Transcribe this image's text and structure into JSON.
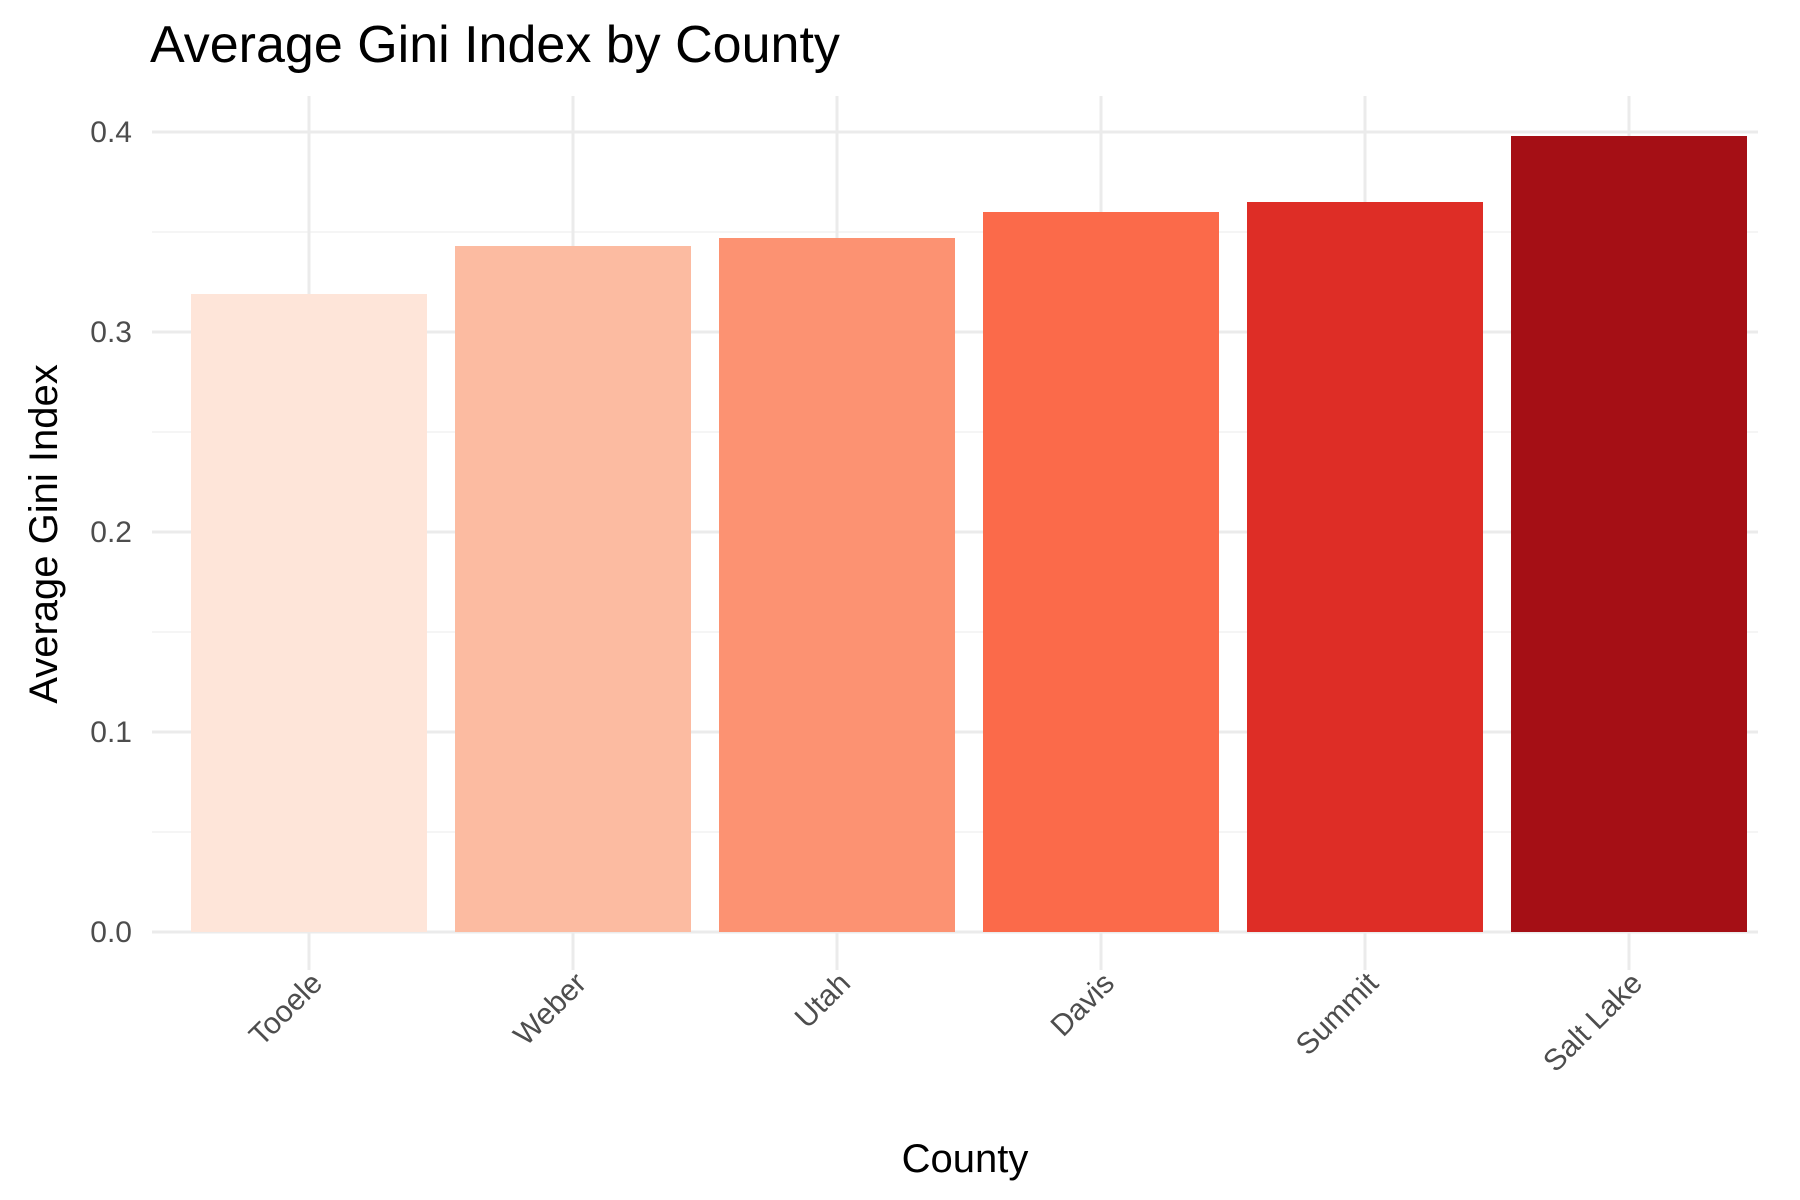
{
  "chart_data": {
    "type": "bar",
    "title": "Average Gini Index by County",
    "xlabel": "County",
    "ylabel": "Average Gini Index",
    "categories": [
      "Tooele",
      "Weber",
      "Utah",
      "Davis",
      "Summit",
      "Salt Lake"
    ],
    "values": [
      0.319,
      0.343,
      0.347,
      0.36,
      0.365,
      0.398
    ],
    "colors": [
      "#fee5d9",
      "#fcbba1",
      "#fc9272",
      "#fb6a4a",
      "#de2d26",
      "#a50f15"
    ],
    "ylim": [
      0,
      0.4
    ],
    "yticks": [
      0.0,
      0.1,
      0.2,
      0.3,
      0.4
    ],
    "ytick_labels": [
      "0.0",
      "0.1",
      "0.2",
      "0.3",
      "0.4"
    ],
    "grid": true,
    "legend": "none"
  }
}
